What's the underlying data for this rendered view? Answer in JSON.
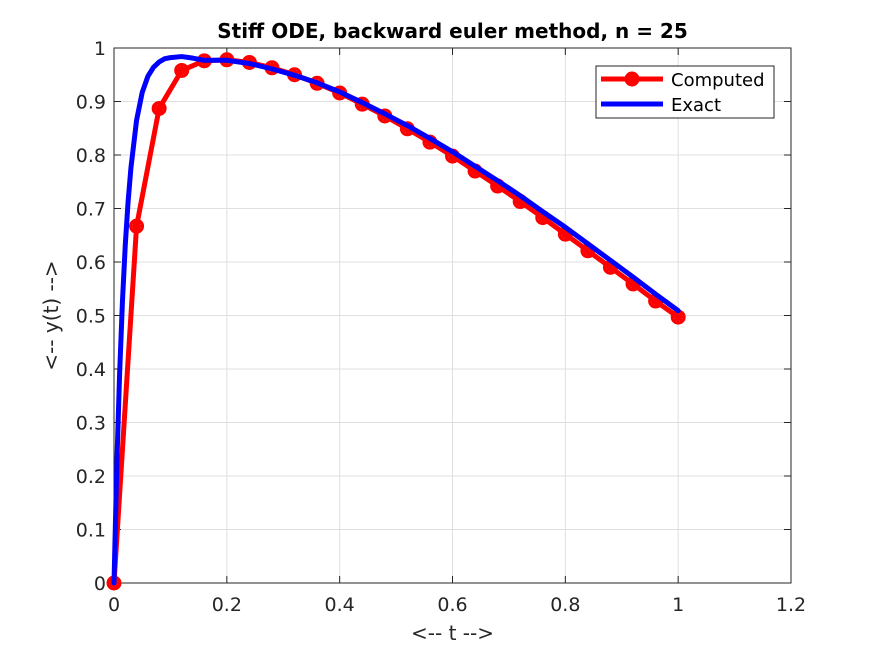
{
  "chart_data": {
    "type": "line",
    "title": "Stiff ODE, backward euler method, n = 25",
    "xlabel": "<-- t -->",
    "ylabel": "<-- y(t) -->",
    "xlim": [
      0,
      1.2
    ],
    "ylim": [
      0,
      1
    ],
    "xticks": [
      0,
      0.2,
      0.4,
      0.6,
      0.8,
      1,
      1.2
    ],
    "xtick_labels": [
      "0",
      "0.2",
      "0.4",
      "0.6",
      "0.8",
      "1",
      "1.2"
    ],
    "yticks": [
      0,
      0.1,
      0.2,
      0.3,
      0.4,
      0.5,
      0.6,
      0.7,
      0.8,
      0.9,
      1
    ],
    "ytick_labels": [
      "0",
      "0.1",
      "0.2",
      "0.3",
      "0.4",
      "0.5",
      "0.6",
      "0.7",
      "0.8",
      "0.9",
      "1"
    ],
    "grid": true,
    "legend_position": "top-right",
    "series": [
      {
        "name": "Computed",
        "color": "#ff0000",
        "marker": "asterisk-circle",
        "x": [
          0,
          0.04,
          0.08,
          0.12,
          0.16,
          0.2,
          0.24,
          0.28,
          0.32,
          0.36,
          0.4,
          0.44,
          0.48,
          0.52,
          0.56,
          0.6,
          0.64,
          0.68,
          0.72,
          0.76,
          0.8,
          0.84,
          0.88,
          0.92,
          0.96,
          1.0
        ],
        "y": [
          0,
          0.667,
          0.887,
          0.958,
          0.976,
          0.978,
          0.973,
          0.963,
          0.95,
          0.934,
          0.916,
          0.895,
          0.873,
          0.849,
          0.824,
          0.798,
          0.77,
          0.742,
          0.713,
          0.683,
          0.652,
          0.621,
          0.59,
          0.559,
          0.527,
          0.497
        ]
      },
      {
        "name": "Exact",
        "color": "#0000ff",
        "x": [
          0,
          0.005,
          0.01,
          0.015,
          0.02,
          0.025,
          0.03,
          0.04,
          0.05,
          0.06,
          0.07,
          0.08,
          0.09,
          0.1,
          0.12,
          0.14,
          0.16,
          0.2,
          0.24,
          0.28,
          0.32,
          0.36,
          0.4,
          0.44,
          0.48,
          0.52,
          0.56,
          0.6,
          0.64,
          0.68,
          0.72,
          0.76,
          0.8,
          0.84,
          0.88,
          0.92,
          0.96,
          1.0
        ],
        "y": [
          0,
          0.221,
          0.393,
          0.527,
          0.632,
          0.713,
          0.776,
          0.865,
          0.917,
          0.947,
          0.964,
          0.974,
          0.98,
          0.982,
          0.984,
          0.981,
          0.977,
          0.977,
          0.971,
          0.961,
          0.949,
          0.935,
          0.918,
          0.898,
          0.877,
          0.855,
          0.831,
          0.806,
          0.779,
          0.752,
          0.724,
          0.694,
          0.665,
          0.634,
          0.603,
          0.572,
          0.54,
          0.509
        ]
      }
    ]
  }
}
